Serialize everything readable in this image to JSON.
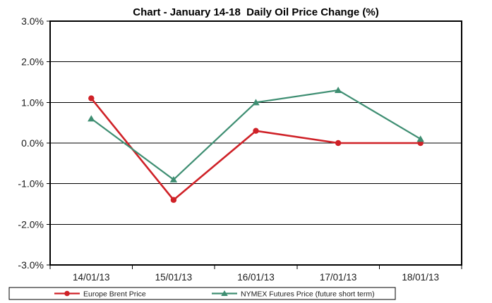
{
  "chart_data": {
    "type": "line",
    "title": "Chart - January 14-18  Daily Oil Price Change (%)",
    "xlabel": "",
    "ylabel": "",
    "ylim": [
      -3,
      3
    ],
    "ytick_step": 1,
    "ytick_labels": [
      "3.0%",
      "2.0%",
      "1.0%",
      "0.0%",
      "-1.0%",
      "-2.0%",
      "-3.0%"
    ],
    "categories": [
      "14/01/13",
      "15/01/13",
      "16/01/13",
      "17/01/13",
      "18/01/13"
    ],
    "series": [
      {
        "name": "Europe Brent Price",
        "color": "#cf2127",
        "marker": "circle",
        "values": [
          1.1,
          -1.4,
          0.3,
          0.0,
          0.0
        ]
      },
      {
        "name": "NYMEX Futures Price (future short term)",
        "color": "#3e8e72",
        "marker": "triangle",
        "values": [
          0.6,
          -0.9,
          1.0,
          1.3,
          0.1
        ]
      }
    ],
    "grid": "horizontal",
    "legend_position": "bottom",
    "axis_color": "#000000",
    "background_color": "#ffffff"
  }
}
